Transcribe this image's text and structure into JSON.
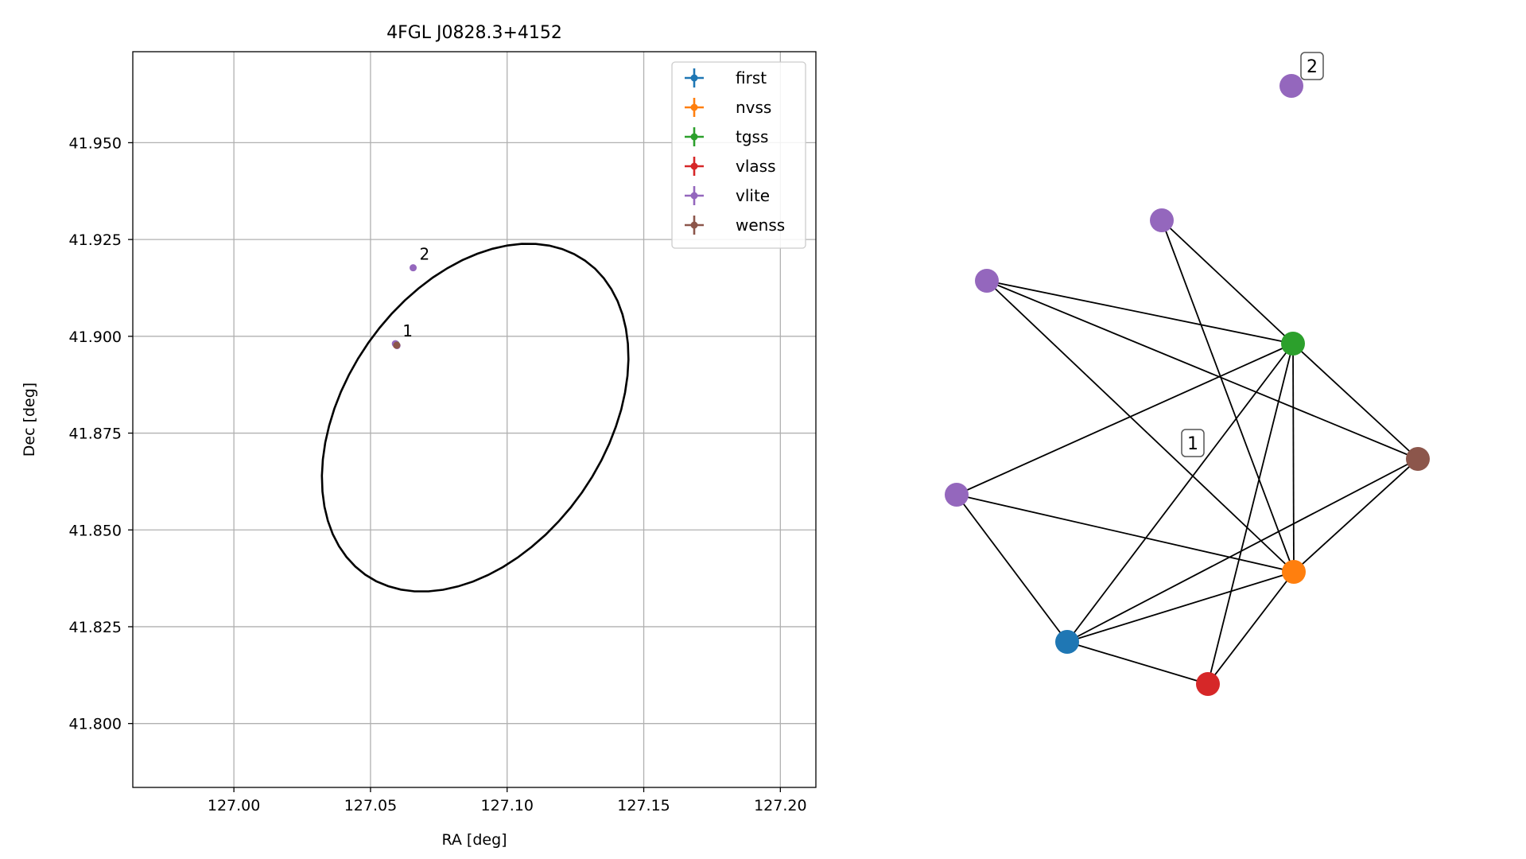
{
  "chart_data": [
    {
      "type": "scatter",
      "title": "4FGL J0828.3+4152",
      "xlabel": "RA [deg]",
      "ylabel": "Dec [deg]",
      "xlim": [
        126.963,
        127.213
      ],
      "ylim": [
        41.7835,
        41.9735
      ],
      "xticks": [
        127.0,
        127.05,
        127.1,
        127.15,
        127.2
      ],
      "xtick_labels": [
        "127.00",
        "127.05",
        "127.10",
        "127.15",
        "127.20"
      ],
      "yticks": [
        41.8,
        41.825,
        41.85,
        41.875,
        41.9,
        41.925,
        41.95
      ],
      "ytick_labels": [
        "41.800",
        "41.825",
        "41.850",
        "41.875",
        "41.900",
        "41.925",
        "41.950"
      ],
      "grid": true,
      "legend_position": "top-right",
      "series": [
        {
          "name": "first",
          "color": "#1f77b4",
          "points": [
            {
              "x": 127.0594,
              "y": 41.8979
            }
          ]
        },
        {
          "name": "nvss",
          "color": "#ff7f0e",
          "points": [
            {
              "x": 127.0594,
              "y": 41.8978
            }
          ]
        },
        {
          "name": "tgss",
          "color": "#2ca02c",
          "points": [
            {
              "x": 127.0593,
              "y": 41.898
            }
          ]
        },
        {
          "name": "vlass",
          "color": "#d62728",
          "points": [
            {
              "x": 127.0594,
              "y": 41.8978
            }
          ]
        },
        {
          "name": "vlite",
          "color": "#9467bd",
          "points": [
            {
              "x": 127.0591,
              "y": 41.8981
            },
            {
              "x": 127.0597,
              "y": 41.8976
            },
            {
              "x": 127.0656,
              "y": 41.9177
            }
          ]
        },
        {
          "name": "wenss",
          "color": "#8c564b",
          "points": [
            {
              "x": 127.0596,
              "y": 41.8977
            }
          ]
        }
      ],
      "annotations": [
        {
          "text": "1",
          "x": 127.0594,
          "y": 41.8979
        },
        {
          "text": "2",
          "x": 127.0656,
          "y": 41.9177
        }
      ],
      "ellipse": {
        "center_ra": 127.0883,
        "center_dec": 41.879,
        "color": "#000000"
      }
    },
    {
      "type": "network",
      "nodes": [
        {
          "id": "first",
          "color": "#1f77b4"
        },
        {
          "id": "nvss",
          "color": "#ff7f0e"
        },
        {
          "id": "tgss",
          "color": "#2ca02c"
        },
        {
          "id": "vlass",
          "color": "#d62728"
        },
        {
          "id": "wenss",
          "color": "#8c564b"
        },
        {
          "id": "vlite_a",
          "color": "#9467bd"
        },
        {
          "id": "vlite_b",
          "color": "#9467bd"
        },
        {
          "id": "vlite_c",
          "color": "#9467bd"
        },
        {
          "id": "vlite_d",
          "color": "#9467bd"
        }
      ],
      "edges": [
        [
          "vlite_a",
          "tgss"
        ],
        [
          "vlite_a",
          "nvss"
        ],
        [
          "vlite_b",
          "tgss"
        ],
        [
          "vlite_b",
          "nvss"
        ],
        [
          "vlite_b",
          "first"
        ],
        [
          "vlite_c",
          "tgss"
        ],
        [
          "vlite_c",
          "nvss"
        ],
        [
          "vlite_c",
          "wenss"
        ],
        [
          "tgss",
          "wenss"
        ],
        [
          "tgss",
          "nvss"
        ],
        [
          "tgss",
          "first"
        ],
        [
          "tgss",
          "vlass"
        ],
        [
          "wenss",
          "nvss"
        ],
        [
          "wenss",
          "first"
        ],
        [
          "nvss",
          "first"
        ],
        [
          "nvss",
          "vlass"
        ],
        [
          "first",
          "vlass"
        ]
      ],
      "labels": [
        "1",
        "2"
      ]
    }
  ]
}
